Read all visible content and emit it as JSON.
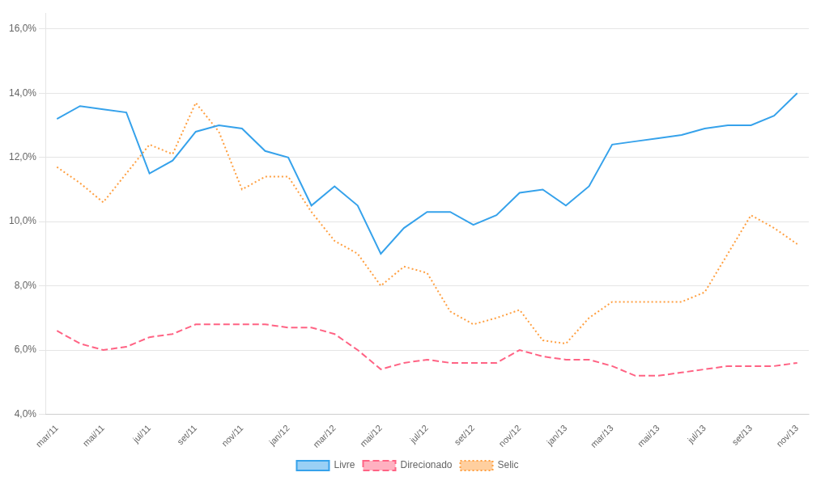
{
  "chart_data": {
    "type": "line",
    "categories": [
      "mar/11",
      null,
      "mai/11",
      null,
      "jul/11",
      null,
      "set/11",
      null,
      "nov/11",
      null,
      "jan/12",
      null,
      "mar/12",
      null,
      "mai/12",
      null,
      "jul/12",
      null,
      "set/12",
      null,
      "nov/12",
      null,
      "jan/13",
      null,
      "mar/13",
      null,
      "mai/13",
      null,
      "jul/13",
      null,
      "set/13",
      null,
      "nov/13"
    ],
    "series": [
      {
        "name": "Livre",
        "line_style": "solid",
        "values": [
          13.2,
          13.6,
          13.5,
          13.4,
          11.5,
          11.9,
          12.8,
          13.0,
          12.9,
          12.2,
          12.0,
          10.5,
          11.1,
          10.5,
          9.0,
          9.8,
          10.3,
          10.3,
          9.9,
          10.2,
          10.9,
          11.0,
          10.5,
          11.1,
          12.4,
          12.5,
          12.6,
          12.7,
          12.9,
          13.0,
          13.0,
          13.3,
          14.0
        ]
      },
      {
        "name": "Direcionado",
        "line_style": "dashed",
        "values": [
          6.6,
          6.2,
          6.0,
          6.1,
          6.4,
          6.5,
          6.8,
          6.8,
          6.8,
          6.8,
          6.7,
          6.7,
          6.5,
          6.0,
          5.4,
          5.6,
          5.7,
          5.6,
          5.6,
          5.6,
          6.0,
          5.8,
          5.7,
          5.7,
          5.5,
          5.2,
          5.2,
          5.3,
          5.4,
          5.5,
          5.5,
          5.5,
          5.6
        ]
      },
      {
        "name": "Selic",
        "line_style": "dotted",
        "values": [
          11.7,
          11.2,
          10.6,
          11.5,
          12.4,
          12.1,
          13.7,
          12.8,
          11.0,
          11.4,
          11.4,
          10.3,
          9.4,
          9.0,
          8.0,
          8.6,
          8.4,
          7.2,
          6.8,
          7.0,
          7.25,
          6.3,
          6.2,
          7.0,
          7.5,
          7.5,
          7.5,
          7.5,
          7.8,
          9.0,
          10.2,
          9.8,
          9.3
        ]
      }
    ],
    "ylim": [
      4.0,
      16.5
    ],
    "yticks": [
      {
        "value": 4.0,
        "label": "4,0%"
      },
      {
        "value": 6.0,
        "label": "6,0%"
      },
      {
        "value": 8.0,
        "label": "8,0%"
      },
      {
        "value": 10.0,
        "label": "10,0%"
      },
      {
        "value": 12.0,
        "label": "12,0%"
      },
      {
        "value": 14.0,
        "label": "14,0%"
      },
      {
        "value": 16.0,
        "label": "16,0%"
      }
    ],
    "grid": "y",
    "legend": "bottom"
  }
}
